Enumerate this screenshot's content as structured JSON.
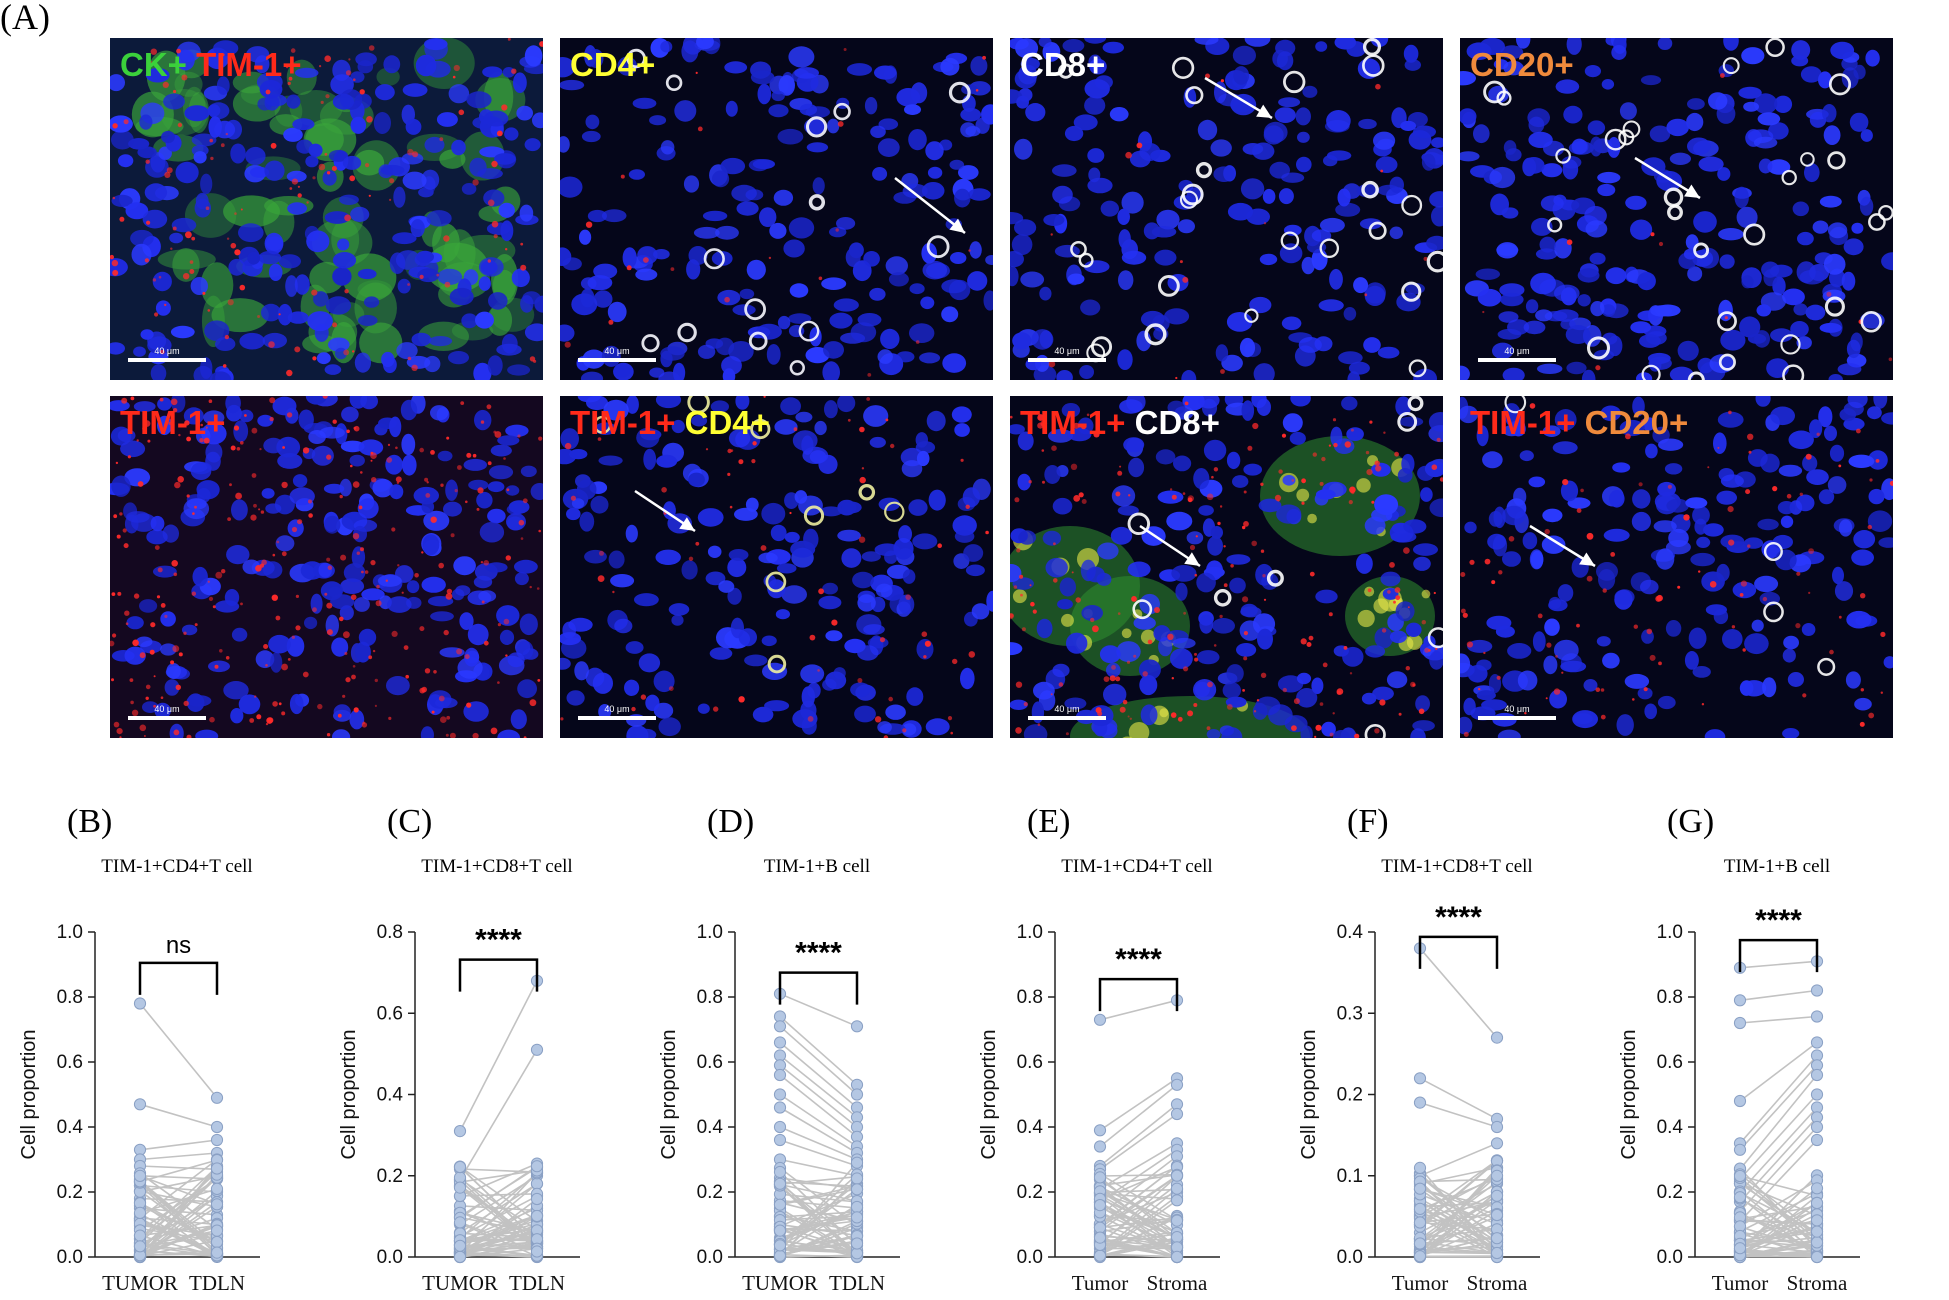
{
  "panel_a": {
    "letter": "(A)",
    "tiles": [
      {
        "row": 0,
        "col": 0,
        "variant": "ck",
        "scale": "40 μm",
        "label": [
          {
            "text": "CK+",
            "color": "#3bd13b"
          },
          {
            "text": "TIM-1+",
            "color": "#ff2a1a"
          }
        ]
      },
      {
        "row": 0,
        "col": 1,
        "variant": "cd4",
        "scale": "40 μm",
        "label": [
          {
            "text": "CD4+",
            "color": "#ffff33"
          }
        ]
      },
      {
        "row": 0,
        "col": 2,
        "variant": "cd8",
        "scale": "40 μm",
        "label": [
          {
            "text": "CD8+",
            "color": "#ffffff"
          }
        ]
      },
      {
        "row": 0,
        "col": 3,
        "variant": "cd20",
        "scale": "40 μm",
        "label": [
          {
            "text": "CD20+",
            "color": "#f08a3c"
          }
        ]
      },
      {
        "row": 1,
        "col": 0,
        "variant": "tim",
        "scale": "40 μm",
        "label": [
          {
            "text": "TIM-1+",
            "color": "#ff2a1a"
          }
        ]
      },
      {
        "row": 1,
        "col": 1,
        "variant": "timcd4",
        "scale": "40 μm",
        "label": [
          {
            "text": "TIM-1+",
            "color": "#ff2a1a"
          },
          {
            "text": "CD4+",
            "color": "#ffff33"
          }
        ]
      },
      {
        "row": 1,
        "col": 2,
        "variant": "timcd8",
        "scale": "40 μm",
        "label": [
          {
            "text": "TIM-1+",
            "color": "#ff2a1a"
          },
          {
            "text": "CD8+",
            "color": "#ffffff"
          }
        ]
      },
      {
        "row": 1,
        "col": 3,
        "variant": "timcd20",
        "scale": "40 μm",
        "label": [
          {
            "text": "TIM-1+",
            "color": "#ff2a1a"
          },
          {
            "text": "CD20+",
            "color": "#f08a3c"
          }
        ]
      }
    ]
  },
  "chart_data": [
    {
      "panel": "(B)",
      "type": "scatter",
      "title": "TIM-1+CD4+T cell",
      "ylabel": "Cell proportion",
      "categories": [
        "TUMOR",
        "TDLN"
      ],
      "ylim": [
        0,
        1.0
      ],
      "yticks": [
        "0.0",
        "0.2",
        "0.4",
        "0.6",
        "0.8",
        "1.0"
      ],
      "significance": "ns",
      "highlight_points": [
        [
          0.78,
          0.49
        ],
        [
          0.47,
          0.4
        ],
        [
          0.33,
          0.36
        ],
        [
          0.3,
          0.32
        ],
        [
          0.28,
          0.27
        ],
        [
          0.25,
          0.24
        ],
        [
          0.22,
          0.2
        ],
        [
          0.18,
          0.17
        ],
        [
          0.15,
          0.13
        ],
        [
          0.12,
          0.1
        ]
      ]
    },
    {
      "panel": "(C)",
      "type": "scatter",
      "title": "TIM-1+CD8+T cell",
      "ylabel": "Cell proportion",
      "categories": [
        "TUMOR",
        "TDLN"
      ],
      "ylim": [
        0,
        0.8
      ],
      "yticks": [
        "0.0",
        "0.2",
        "0.4",
        "0.6",
        "0.8"
      ],
      "significance": "****",
      "highlight_points": [
        [
          0.31,
          0.68
        ],
        [
          0.19,
          0.51
        ],
        [
          0.15,
          0.23
        ],
        [
          0.1,
          0.22
        ],
        [
          0.08,
          0.2
        ],
        [
          0.06,
          0.18
        ],
        [
          0.05,
          0.15
        ],
        [
          0.04,
          0.12
        ],
        [
          0.03,
          0.09
        ],
        [
          0.02,
          0.06
        ]
      ]
    },
    {
      "panel": "(D)",
      "type": "scatter",
      "title": "TIM-1+B cell",
      "ylabel": "Cell proportion",
      "categories": [
        "TUMOR",
        "TDLN"
      ],
      "ylim": [
        0,
        1.0
      ],
      "yticks": [
        "0.0",
        "0.2",
        "0.4",
        "0.6",
        "0.8",
        "1.0"
      ],
      "significance": "****",
      "highlight_points": [
        [
          0.81,
          0.71
        ],
        [
          0.74,
          0.53
        ],
        [
          0.71,
          0.5
        ],
        [
          0.66,
          0.46
        ],
        [
          0.62,
          0.43
        ],
        [
          0.59,
          0.4
        ],
        [
          0.56,
          0.37
        ],
        [
          0.5,
          0.34
        ],
        [
          0.46,
          0.32
        ],
        [
          0.4,
          0.3
        ],
        [
          0.36,
          0.28
        ],
        [
          0.3,
          0.25
        ]
      ]
    },
    {
      "panel": "(E)",
      "type": "scatter",
      "title": "TIM-1+CD4+T cell",
      "ylabel": "Cell proportion",
      "categories": [
        "Tumor",
        "Stroma"
      ],
      "ylim": [
        0,
        1.0
      ],
      "yticks": [
        "0.0",
        "0.2",
        "0.4",
        "0.6",
        "0.8",
        "1.0"
      ],
      "significance": "****",
      "highlight_points": [
        [
          0.73,
          0.79
        ],
        [
          0.39,
          0.55
        ],
        [
          0.34,
          0.53
        ],
        [
          0.28,
          0.47
        ],
        [
          0.27,
          0.44
        ],
        [
          0.21,
          0.35
        ],
        [
          0.17,
          0.33
        ],
        [
          0.13,
          0.31
        ],
        [
          0.1,
          0.28
        ],
        [
          0.08,
          0.25
        ]
      ]
    },
    {
      "panel": "(F)",
      "type": "scatter",
      "title": "TIM-1+CD8+T cell",
      "ylabel": "Cell proportion",
      "categories": [
        "Tumor",
        "Stroma"
      ],
      "ylim": [
        0,
        0.4
      ],
      "yticks": [
        "0.0",
        "0.1",
        "0.2",
        "0.3",
        "0.4"
      ],
      "significance": "****",
      "highlight_points": [
        [
          0.38,
          0.27
        ],
        [
          0.22,
          0.17
        ],
        [
          0.19,
          0.16
        ],
        [
          0.1,
          0.14
        ],
        [
          0.09,
          0.11
        ],
        [
          0.05,
          0.1
        ],
        [
          0.04,
          0.09
        ],
        [
          0.03,
          0.08
        ],
        [
          0.02,
          0.06
        ],
        [
          0.01,
          0.05
        ]
      ]
    },
    {
      "panel": "(G)",
      "type": "scatter",
      "title": "TIM-1+B cell",
      "ylabel": "Cell proportion",
      "categories": [
        "Tumor",
        "Stroma"
      ],
      "ylim": [
        0,
        1.0
      ],
      "yticks": [
        "0.0",
        "0.2",
        "0.4",
        "0.6",
        "0.8",
        "1.0"
      ],
      "significance": "****",
      "highlight_points": [
        [
          0.89,
          0.91
        ],
        [
          0.79,
          0.82
        ],
        [
          0.72,
          0.74
        ],
        [
          0.48,
          0.66
        ],
        [
          0.35,
          0.62
        ],
        [
          0.33,
          0.59
        ],
        [
          0.27,
          0.56
        ],
        [
          0.24,
          0.5
        ],
        [
          0.2,
          0.46
        ],
        [
          0.17,
          0.43
        ],
        [
          0.14,
          0.4
        ],
        [
          0.11,
          0.36
        ]
      ]
    }
  ]
}
